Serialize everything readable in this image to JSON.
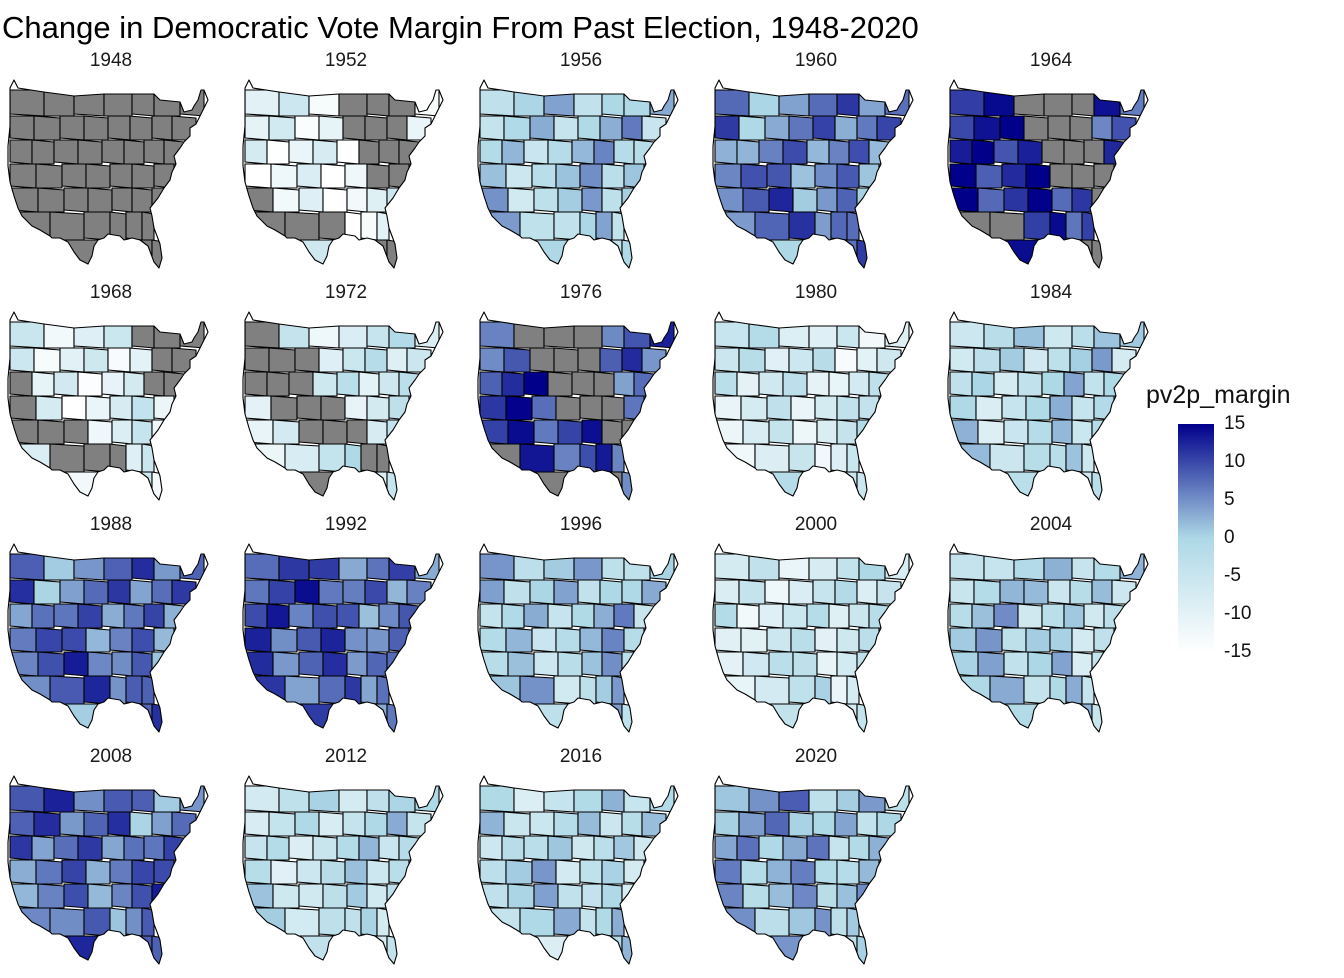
{
  "title": "Change in Democratic Vote Margin From Past Election, 1948-2020",
  "legend": {
    "title": "pv2p_margin",
    "min": -15,
    "max": 15,
    "ticks": [
      "15",
      "10",
      "5",
      "0",
      "-5",
      "-10",
      "-15"
    ],
    "colors": {
      "low": "#ffffff",
      "mid": "#add8e6",
      "high": "#00008b",
      "na": "#808080"
    }
  },
  "map_data": {
    "type": "choropleth",
    "facets": [
      {
        "year": "1948",
        "shading": "gray",
        "level": null
      },
      {
        "year": "1952",
        "shading": "mixed",
        "level": -12
      },
      {
        "year": "1956",
        "shading": "fill",
        "level": 0
      },
      {
        "year": "1960",
        "shading": "fill",
        "level": 6
      },
      {
        "year": "1964",
        "shading": "mixed",
        "level": 11
      },
      {
        "year": "1968",
        "shading": "mixed",
        "level": -10
      },
      {
        "year": "1972",
        "shading": "mixed",
        "level": -7
      },
      {
        "year": "1976",
        "shading": "mixed",
        "level": 9
      },
      {
        "year": "1980",
        "shading": "fill",
        "level": -7
      },
      {
        "year": "1984",
        "shading": "fill",
        "level": -2
      },
      {
        "year": "1988",
        "shading": "fill",
        "level": 7
      },
      {
        "year": "1992",
        "shading": "fill",
        "level": 8
      },
      {
        "year": "1996",
        "shading": "fill",
        "level": 0
      },
      {
        "year": "2000",
        "shading": "fill",
        "level": -6
      },
      {
        "year": "2004",
        "shading": "fill",
        "level": -1
      },
      {
        "year": "2008",
        "shading": "fill",
        "level": 7
      },
      {
        "year": "2012",
        "shading": "fill",
        "level": -3
      },
      {
        "year": "2016",
        "shading": "fill",
        "level": -2
      },
      {
        "year": "2020",
        "shading": "fill",
        "level": 2
      }
    ]
  }
}
